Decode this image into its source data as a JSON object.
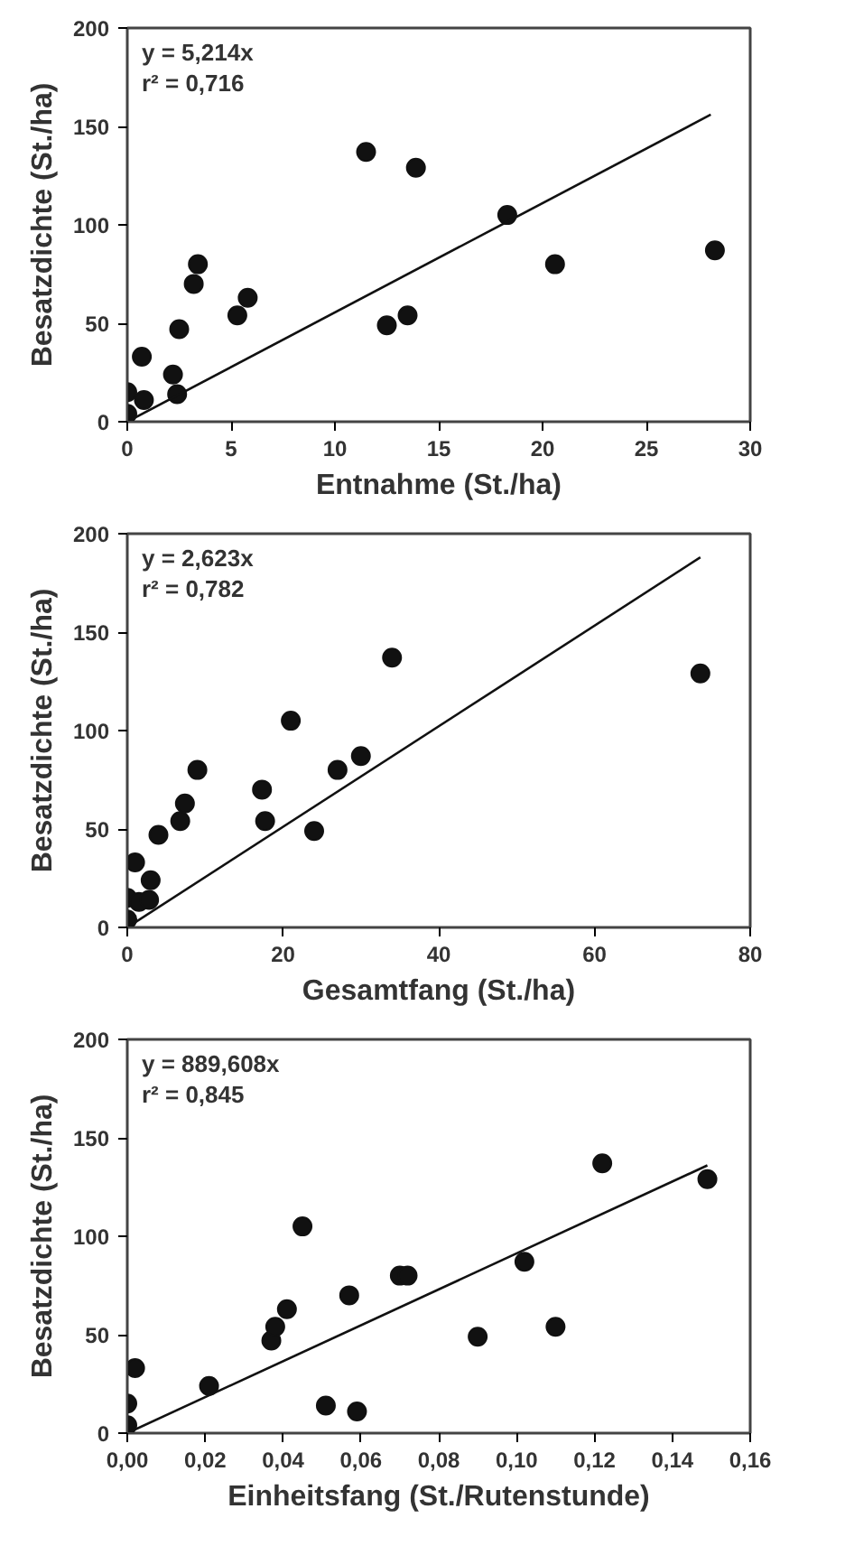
{
  "chart_data": [
    {
      "type": "scatter",
      "xlabel": "Entnahme (St./ha)",
      "ylabel": "Besatzdichte (St./ha)",
      "annotations": [
        "y = 5,214x",
        "r² = 0,716"
      ],
      "xlim": [
        0,
        30
      ],
      "ylim": [
        0,
        200
      ],
      "xticks": [
        0,
        5,
        10,
        15,
        20,
        25,
        30
      ],
      "yticks": [
        0,
        50,
        100,
        150,
        200
      ],
      "grid": false,
      "marker": "circle",
      "series": [
        {
          "color": "#111111",
          "x": [
            0,
            0,
            0.7,
            0.8,
            2.2,
            2.4,
            2.5,
            3.2,
            3.4,
            5.3,
            5.8,
            11.5,
            12.5,
            13.5,
            13.9,
            18.3,
            20.6,
            28.3
          ],
          "values": [
            15,
            4,
            33,
            11,
            24,
            14,
            47,
            70,
            80,
            54,
            63,
            137,
            49,
            54,
            129,
            105,
            80,
            87
          ]
        },
        {
          "type": "line",
          "color": "#111111",
          "marker": "none",
          "line_style": "solid",
          "x": [
            0,
            28.1
          ],
          "values": [
            0,
            156
          ]
        }
      ]
    },
    {
      "type": "scatter",
      "xlabel": "Gesamtfang (St./ha)",
      "ylabel": "Besatzdichte (St./ha)",
      "annotations": [
        "y = 2,623x",
        "r² = 0,782"
      ],
      "xlim": [
        0,
        80
      ],
      "ylim": [
        0,
        200
      ],
      "xticks": [
        0,
        20,
        40,
        60,
        80
      ],
      "yticks": [
        0,
        50,
        100,
        150,
        200
      ],
      "grid": false,
      "marker": "circle",
      "series": [
        {
          "color": "#111111",
          "x": [
            0,
            0,
            1,
            1.5,
            2.8,
            3,
            4,
            6.8,
            7.4,
            9,
            17.3,
            17.7,
            21,
            24,
            27,
            30,
            34,
            73.6
          ],
          "values": [
            15,
            4,
            33,
            13,
            14,
            24,
            47,
            54,
            63,
            80,
            70,
            54,
            105,
            49,
            80,
            87,
            137,
            129
          ]
        },
        {
          "type": "line",
          "color": "#111111",
          "marker": "none",
          "line_style": "solid",
          "x": [
            0,
            73.6
          ],
          "values": [
            0,
            188
          ]
        }
      ]
    },
    {
      "type": "scatter",
      "xlabel": "Einheitsfang (St./Rutenstunde)",
      "ylabel": "Besatzdichte (St./ha)",
      "annotations": [
        "y = 889,608x",
        "r² = 0,845"
      ],
      "xlim": [
        0,
        0.16
      ],
      "ylim": [
        0,
        200
      ],
      "xticks": [
        {
          "value": 0,
          "label": "0,00"
        },
        {
          "value": 0.02,
          "label": "0,02"
        },
        {
          "value": 0.04,
          "label": "0,04"
        },
        {
          "value": 0.06,
          "label": "0,06"
        },
        {
          "value": 0.08,
          "label": "0,08"
        },
        {
          "value": 0.1,
          "label": "0,10"
        },
        {
          "value": 0.12,
          "label": "0,12"
        },
        {
          "value": 0.14,
          "label": "0,14"
        },
        {
          "value": 0.16,
          "label": "0,16"
        }
      ],
      "yticks": [
        0,
        50,
        100,
        150,
        200
      ],
      "grid": false,
      "marker": "circle",
      "series": [
        {
          "color": "#111111",
          "x": [
            0,
            0,
            0.002,
            0.021,
            0.037,
            0.038,
            0.041,
            0.045,
            0.051,
            0.057,
            0.059,
            0.07,
            0.072,
            0.09,
            0.102,
            0.11,
            0.122,
            0.149
          ],
          "values": [
            15,
            4,
            33,
            24,
            47,
            54,
            63,
            105,
            14,
            70,
            11,
            80,
            80,
            49,
            87,
            54,
            137,
            129
          ]
        },
        {
          "type": "line",
          "color": "#111111",
          "marker": "none",
          "line_style": "solid",
          "x": [
            0,
            0.149
          ],
          "values": [
            0,
            136
          ]
        }
      ]
    }
  ]
}
